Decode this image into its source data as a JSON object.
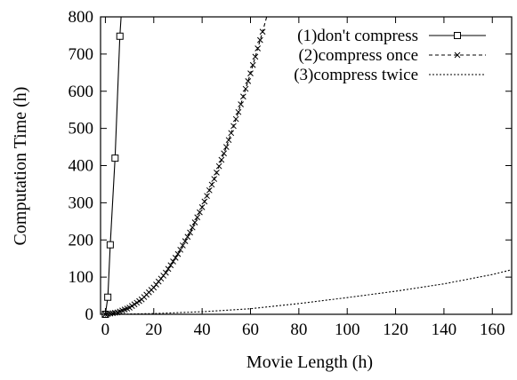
{
  "chart_data": {
    "type": "line",
    "xlabel": "Movie Length (h)",
    "ylabel": "Computation Time (h)",
    "xlim": [
      -2,
      168
    ],
    "ylim": [
      0,
      800
    ],
    "xticks": [
      "0",
      "20",
      "40",
      "60",
      "80",
      "100",
      "120",
      "140",
      "160"
    ],
    "yticks": [
      "0",
      "100",
      "200",
      "300",
      "400",
      "500",
      "600",
      "700",
      "800"
    ],
    "grid": false,
    "legend_position": "top-right",
    "series": [
      {
        "name": "(1)don't compress",
        "line_style": "solid",
        "marker": "square",
        "x": [
          0,
          1,
          2,
          4,
          6,
          6.5
        ],
        "y": [
          0,
          46,
          187,
          420,
          748,
          800
        ]
      },
      {
        "name": "(2)compress once",
        "line_style": "dashed",
        "marker": "x",
        "x": [
          0,
          5,
          10,
          15,
          20,
          25,
          30,
          35,
          40,
          45,
          50,
          55,
          60,
          65,
          66.7
        ],
        "y": [
          0,
          5,
          18,
          40,
          72,
          112,
          162,
          220,
          288,
          364,
          450,
          544,
          648,
          760,
          800
        ]
      },
      {
        "name": "(3)compress twice",
        "line_style": "dotted",
        "marker": "none",
        "x": [
          0,
          20,
          40,
          60,
          80,
          100,
          120,
          140,
          160,
          168
        ],
        "y": [
          0,
          2,
          7,
          15,
          29,
          45,
          62,
          82,
          107,
          120
        ]
      }
    ]
  }
}
